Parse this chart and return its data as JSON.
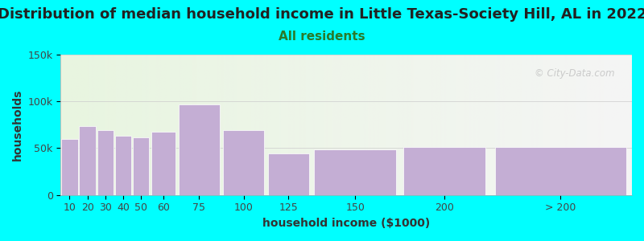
{
  "title": "Distribution of median household income in Little Texas-Society Hill, AL in 2022",
  "subtitle": "All residents",
  "xlabel": "household income ($1000)",
  "ylabel": "households",
  "background_color": "#00FFFF",
  "bar_color": "#c4aed4",
  "categories": [
    "10",
    "20",
    "30",
    "40",
    "50",
    "60",
    "75",
    "100",
    "125",
    "150",
    "200",
    "> 200"
  ],
  "values": [
    60000,
    74000,
    69000,
    63000,
    62000,
    68000,
    97000,
    69000,
    44000,
    49000,
    51000,
    51000
  ],
  "ylim": [
    0,
    150000
  ],
  "ytick_labels": [
    "0",
    "50k",
    "100k",
    "150k"
  ],
  "ytick_values": [
    0,
    50000,
    100000,
    150000
  ],
  "title_fontsize": 13,
  "subtitle_fontsize": 11,
  "axis_label_fontsize": 10,
  "tick_fontsize": 9,
  "watermark_text": "© City-Data.com",
  "title_color": "#222222",
  "subtitle_color": "#2a7a2a",
  "axis_label_color": "#333333"
}
